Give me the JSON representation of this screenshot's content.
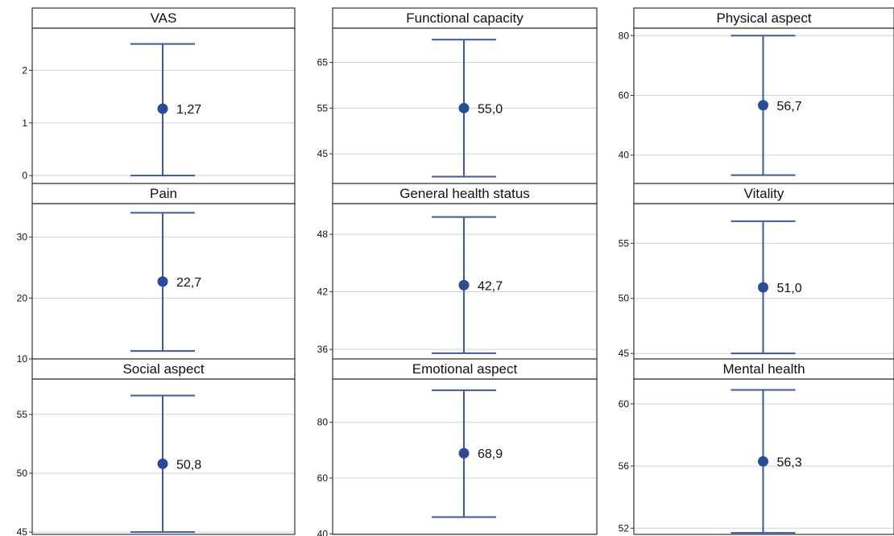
{
  "colors": {
    "marker": "#2a4a9a",
    "errorbar": "#3d58a8",
    "grid": "#c8d2e4",
    "frame": "#333333",
    "text": "#111111"
  },
  "chart_data": [
    {
      "type": "errorbar",
      "title": "VAS",
      "mean": 1.27,
      "mean_label": "1,27",
      "lower": 0.0,
      "upper": 2.5,
      "ylim": [
        -0.15,
        2.8
      ],
      "yticks": [
        0,
        1,
        2
      ],
      "ytick_labels": [
        "0",
        "1",
        "2"
      ]
    },
    {
      "type": "errorbar",
      "title": "Functional capacity",
      "mean": 55.0,
      "mean_label": "55,0",
      "lower": 40.0,
      "upper": 70.0,
      "ylim": [
        38.5,
        72.5
      ],
      "yticks": [
        45,
        55,
        65
      ],
      "ytick_labels": [
        "45",
        "55",
        "65"
      ]
    },
    {
      "type": "errorbar",
      "title": "Physical aspect",
      "mean": 56.7,
      "mean_label": "56,7",
      "lower": 33.3,
      "upper": 80.0,
      "ylim": [
        30.5,
        82.5
      ],
      "yticks": [
        40,
        60,
        80
      ],
      "ytick_labels": [
        "40",
        "60",
        "80"
      ]
    },
    {
      "type": "errorbar",
      "title": "Pain",
      "mean": 22.7,
      "mean_label": "22,7",
      "lower": 11.3,
      "upper": 34.0,
      "ylim": [
        10.0,
        35.5
      ],
      "yticks": [
        10,
        20,
        30
      ],
      "ytick_labels": [
        "10",
        "20",
        "30"
      ]
    },
    {
      "type": "errorbar",
      "title": "General health status",
      "mean": 42.7,
      "mean_label": "42,7",
      "lower": 35.6,
      "upper": 49.8,
      "ylim": [
        35.0,
        51.2
      ],
      "yticks": [
        36,
        42,
        48
      ],
      "ytick_labels": [
        "36",
        "42",
        "48"
      ]
    },
    {
      "type": "errorbar",
      "title": "Vitality",
      "mean": 51.0,
      "mean_label": "51,0",
      "lower": 45.0,
      "upper": 57.0,
      "ylim": [
        44.5,
        58.6
      ],
      "yticks": [
        45,
        50,
        55
      ],
      "ytick_labels": [
        "45",
        "50",
        "55"
      ]
    },
    {
      "type": "errorbar",
      "title": "Social aspect",
      "mean": 50.8,
      "mean_label": "50,8",
      "lower": 45.0,
      "upper": 56.6,
      "ylim": [
        44.8,
        58.0
      ],
      "yticks": [
        45,
        50,
        55
      ],
      "ytick_labels": [
        "45",
        "50",
        "55"
      ]
    },
    {
      "type": "errorbar",
      "title": "Emotional aspect",
      "mean": 68.9,
      "mean_label": "68,9",
      "lower": 46.0,
      "upper": 91.5,
      "ylim": [
        39.8,
        95.5
      ],
      "yticks": [
        40,
        60,
        80
      ],
      "ytick_labels": [
        "40",
        "60",
        "80"
      ]
    },
    {
      "type": "errorbar",
      "title": "Mental health",
      "mean": 56.3,
      "mean_label": "56,3",
      "lower": 51.7,
      "upper": 60.9,
      "ylim": [
        51.6,
        61.6
      ],
      "yticks": [
        52,
        56,
        60
      ],
      "ytick_labels": [
        "52",
        "56",
        "60"
      ]
    }
  ]
}
